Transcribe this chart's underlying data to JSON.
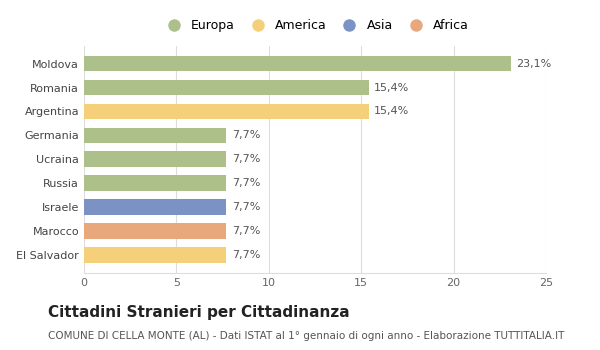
{
  "categories": [
    "El Salvador",
    "Marocco",
    "Israele",
    "Russia",
    "Ucraina",
    "Germania",
    "Argentina",
    "Romania",
    "Moldova"
  ],
  "values": [
    7.7,
    7.7,
    7.7,
    7.7,
    7.7,
    7.7,
    15.4,
    15.4,
    23.1
  ],
  "labels": [
    "7,7%",
    "7,7%",
    "7,7%",
    "7,7%",
    "7,7%",
    "7,7%",
    "15,4%",
    "15,4%",
    "23,1%"
  ],
  "colors": [
    "#f5d07a",
    "#e8a87c",
    "#7b93c4",
    "#adc08a",
    "#adc08a",
    "#adc08a",
    "#f5d07a",
    "#adc08a",
    "#adc08a"
  ],
  "legend_labels": [
    "Europa",
    "America",
    "Asia",
    "Africa"
  ],
  "legend_colors": [
    "#adc08a",
    "#f5d07a",
    "#7b93c4",
    "#e8a87c"
  ],
  "xlim": [
    0,
    25
  ],
  "xticks": [
    0,
    5,
    10,
    15,
    20,
    25
  ],
  "title": "Cittadini Stranieri per Cittadinanza",
  "subtitle": "COMUNE DI CELLA MONTE (AL) - Dati ISTAT al 1° gennaio di ogni anno - Elaborazione TUTTITALIA.IT",
  "title_fontsize": 11,
  "subtitle_fontsize": 7.5,
  "label_fontsize": 8,
  "tick_fontsize": 8,
  "legend_fontsize": 9,
  "bar_height": 0.65,
  "background_color": "#ffffff",
  "grid_color": "#dddddd"
}
